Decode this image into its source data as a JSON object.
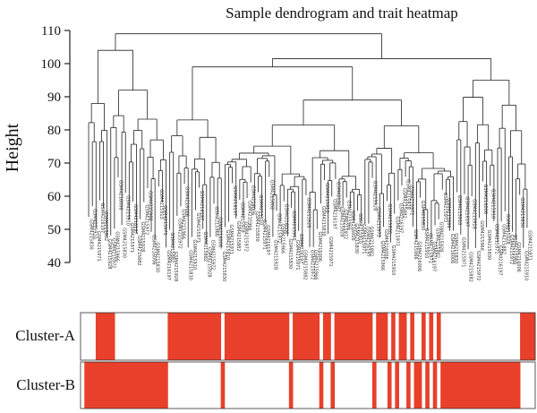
{
  "chart_data": {
    "type": "dendrogram_heatmap",
    "title": "Sample dendrogram and trait heatmap",
    "ylabel": "Height",
    "ylim": [
      40,
      110
    ],
    "yticks": [
      40,
      50,
      60,
      70,
      80,
      90,
      100,
      110
    ],
    "n_samples": 120,
    "visible_leaf_labels": [
      "GSM4215830",
      "GSM4215910",
      "GSM4215971",
      "GSM4216197",
      "GSM4215882",
      "GSM4215928",
      "GSM4215972",
      "GSM4215966",
      "GSM4216006"
    ],
    "traits": [
      {
        "name": "Cluster-A",
        "color": "#e8402a",
        "values": [
          0,
          0,
          0,
          0,
          1,
          1,
          1,
          1,
          1,
          0,
          0,
          0,
          0,
          0,
          0,
          0,
          0,
          0,
          0,
          0,
          0,
          0,
          0,
          1,
          1,
          1,
          1,
          1,
          1,
          1,
          1,
          1,
          1,
          1,
          1,
          1,
          1,
          0,
          1,
          1,
          1,
          1,
          1,
          1,
          1,
          1,
          1,
          1,
          1,
          1,
          1,
          1,
          1,
          1,
          1,
          0,
          1,
          1,
          1,
          1,
          1,
          1,
          1,
          0,
          1,
          1,
          0,
          1,
          1,
          1,
          1,
          1,
          1,
          1,
          1,
          1,
          1,
          0,
          1,
          1,
          1,
          0,
          1,
          0,
          1,
          1,
          0,
          1,
          0,
          0,
          1,
          0,
          1,
          0,
          1,
          0,
          0,
          0,
          0,
          0,
          0,
          0,
          0,
          0,
          0,
          0,
          0,
          0,
          0,
          0,
          0,
          0,
          0,
          0,
          0,
          0,
          1,
          1,
          1,
          1
        ]
      },
      {
        "name": "Cluster-B",
        "color": "#e8402a",
        "values": [
          0,
          1,
          1,
          1,
          1,
          1,
          1,
          1,
          1,
          1,
          1,
          1,
          1,
          1,
          1,
          1,
          1,
          1,
          1,
          1,
          1,
          1,
          1,
          0,
          0,
          0,
          0,
          0,
          0,
          0,
          0,
          0,
          0,
          0,
          0,
          0,
          0,
          1,
          0,
          0,
          0,
          0,
          0,
          0,
          0,
          0,
          0,
          0,
          0,
          0,
          0,
          0,
          0,
          0,
          0,
          1,
          0,
          0,
          0,
          0,
          0,
          0,
          0,
          1,
          0,
          0,
          1,
          0,
          0,
          0,
          0,
          0,
          0,
          0,
          0,
          0,
          0,
          1,
          0,
          0,
          0,
          1,
          0,
          1,
          0,
          0,
          1,
          0,
          1,
          1,
          0,
          1,
          0,
          1,
          0,
          1,
          1,
          1,
          1,
          1,
          1,
          1,
          1,
          1,
          1,
          1,
          1,
          1,
          1,
          1,
          1,
          1,
          1,
          1,
          1,
          1,
          0,
          0,
          0,
          0
        ]
      }
    ],
    "grid": false
  },
  "colors": {
    "line": "#222222",
    "fill": "#e8402a",
    "border": "#333333"
  }
}
